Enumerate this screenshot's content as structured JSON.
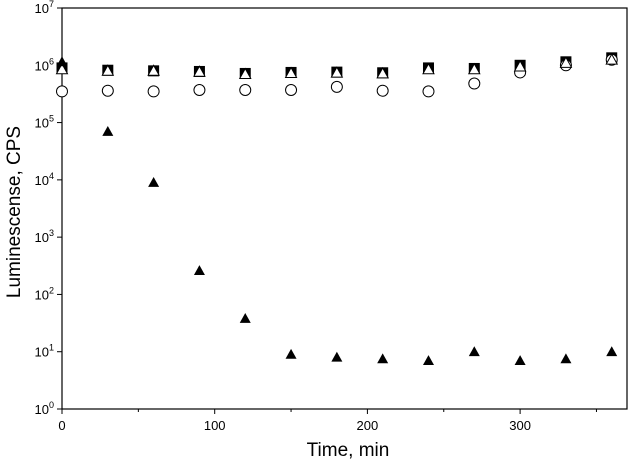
{
  "chart_data": {
    "type": "scatter",
    "xlabel": "Time, min",
    "ylabel": "Luminescense, CPS",
    "title": "",
    "xlim": [
      0,
      370
    ],
    "ylim": [
      1,
      10000000
    ],
    "y_scale": "log",
    "grid": false,
    "legend": "none",
    "x_ticks": [
      0,
      100,
      200,
      300
    ],
    "y_ticks": [
      {
        "value": 1,
        "base": "10",
        "exp": "0"
      },
      {
        "value": 10,
        "base": "10",
        "exp": "1"
      },
      {
        "value": 100,
        "base": "10",
        "exp": "2"
      },
      {
        "value": 1000,
        "base": "10",
        "exp": "3"
      },
      {
        "value": 10000,
        "base": "10",
        "exp": "4"
      },
      {
        "value": 100000,
        "base": "10",
        "exp": "5"
      },
      {
        "value": 1000000,
        "base": "10",
        "exp": "6"
      },
      {
        "value": 10000000,
        "base": "10",
        "exp": "7"
      }
    ],
    "series": [
      {
        "marker": "filled-square",
        "color": "#000000",
        "points": [
          [
            0,
            900000
          ],
          [
            30,
            820000
          ],
          [
            60,
            800000
          ],
          [
            90,
            780000
          ],
          [
            120,
            720000
          ],
          [
            150,
            750000
          ],
          [
            180,
            760000
          ],
          [
            210,
            740000
          ],
          [
            240,
            900000
          ],
          [
            270,
            880000
          ],
          [
            300,
            1000000
          ],
          [
            330,
            1150000
          ],
          [
            360,
            1350000
          ]
        ]
      },
      {
        "marker": "open-circle",
        "color": "#000000",
        "points": [
          [
            0,
            350000
          ],
          [
            30,
            360000
          ],
          [
            60,
            350000
          ],
          [
            90,
            370000
          ],
          [
            120,
            370000
          ],
          [
            150,
            370000
          ],
          [
            180,
            420000
          ],
          [
            210,
            360000
          ],
          [
            240,
            350000
          ],
          [
            270,
            480000
          ],
          [
            300,
            750000
          ],
          [
            330,
            1000000
          ],
          [
            360,
            1250000
          ]
        ]
      },
      {
        "marker": "open-triangle",
        "color": "#000000",
        "points": [
          [
            0,
            850000
          ],
          [
            30,
            800000
          ],
          [
            60,
            800000
          ],
          [
            90,
            770000
          ],
          [
            120,
            700000
          ],
          [
            150,
            730000
          ],
          [
            180,
            740000
          ],
          [
            210,
            720000
          ],
          [
            240,
            850000
          ],
          [
            270,
            850000
          ],
          [
            300,
            950000
          ],
          [
            330,
            1100000
          ],
          [
            360,
            1250000
          ]
        ]
      },
      {
        "marker": "filled-triangle",
        "color": "#000000",
        "points": [
          [
            0,
            1150000
          ],
          [
            30,
            70000
          ],
          [
            60,
            9000
          ],
          [
            90,
            260.0
          ],
          [
            120,
            38
          ],
          [
            150,
            9
          ],
          [
            180,
            8
          ],
          [
            210,
            7.5
          ],
          [
            240,
            7
          ],
          [
            270,
            10
          ],
          [
            300,
            7
          ],
          [
            330,
            7.5
          ],
          [
            360,
            10
          ]
        ]
      }
    ]
  }
}
